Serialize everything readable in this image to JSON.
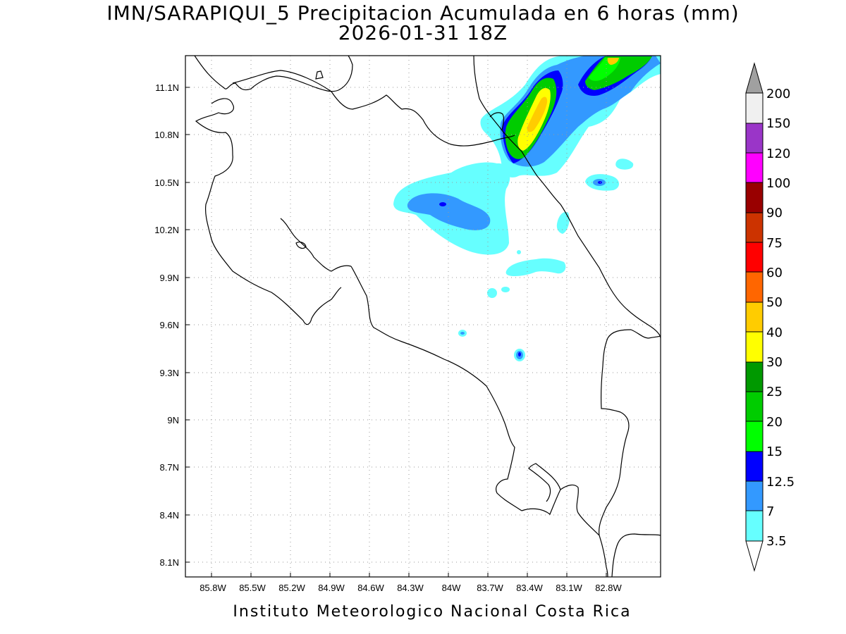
{
  "title_line1": "IMN/SARAPIQUI_5 Precipitacion Acumulada en 6 horas (mm)",
  "title_line2": "2026-01-31 18Z",
  "footer": "Instituto Meteorologico Nacional Costa Rica",
  "map": {
    "lat_ticks": [
      "11.1N",
      "10.8N",
      "10.5N",
      "10.2N",
      "9.9N",
      "9.6N",
      "9.3N",
      "9N",
      "8.7N",
      "8.4N",
      "8.1N"
    ],
    "lon_ticks": [
      "85.8W",
      "85.5W",
      "85.2W",
      "84.9W",
      "84.6W",
      "84.3W",
      "84W",
      "83.7W",
      "83.4W",
      "83.1W",
      "82.8W"
    ],
    "grid": "dotted"
  },
  "legend": {
    "labels": [
      "200",
      "150",
      "120",
      "100",
      "90",
      "75",
      "60",
      "50",
      "40",
      "30",
      "25",
      "20",
      "15",
      "12.5",
      "7",
      "3.5"
    ],
    "colors": [
      "#f0f0f0",
      "#9a35c8",
      "#ff00ff",
      "#990000",
      "#cc3300",
      "#ff0000",
      "#ff6600",
      "#ffcc00",
      "#ffff00",
      "#009900",
      "#00cc00",
      "#00ff00",
      "#0000ff",
      "#3399ff",
      "#66ffff"
    ],
    "over_color": "#a0a0a0",
    "under_color": "#ffffff"
  },
  "precip_colors": {
    "light": "#66ffff",
    "med": "#3399ff",
    "blue": "#0000ff",
    "green": "#00ff00",
    "green2": "#00cc00",
    "dgreen": "#009900",
    "yellow": "#ffff00",
    "orange": "#ffcc00"
  }
}
